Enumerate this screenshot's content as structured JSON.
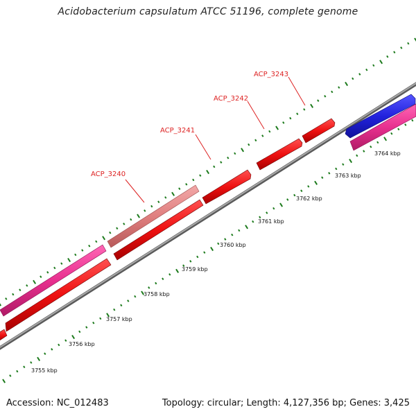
{
  "title": "Acidobacterium capsulatum ATCC 51196, complete genome",
  "accession": "Accession: NC_012483",
  "summary": "Topology: circular; Length: 4,127,356 bp; Genes: 3,425",
  "colors": {
    "backbone": "#8a8a8a",
    "tick": "#1c7a1c",
    "gene_red": "#ee1111",
    "gene_pink": "#e8308f",
    "gene_salmon": "#e07f7f",
    "gene_blue": "#2222dd",
    "label_red": "#dd2222"
  },
  "scale_labels": [
    "3755 kbp",
    "3756 kbp",
    "3757 kbp",
    "3758 kbp",
    "3759 kbp",
    "3760 kbp",
    "3761 kbp",
    "3762 kbp",
    "3763 kbp",
    "3764 kbp"
  ],
  "gene_labels": [
    "ACP_3240",
    "ACP_3241",
    "ACP_3242",
    "ACP_3243"
  ]
}
